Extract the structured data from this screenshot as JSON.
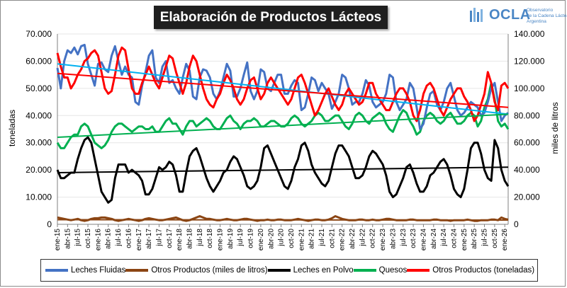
{
  "header": {
    "title": "Elaboración de Productos Lácteos",
    "logo_word": "OCLA",
    "logo_sub": [
      "Observatorio",
      "de la Cadena Láctea",
      "Argentina"
    ]
  },
  "chart_data": {
    "type": "line",
    "left_axis": {
      "label": "toneladas",
      "ticks": [
        "0",
        "10.000",
        "20.000",
        "30.000",
        "40.000",
        "50.000",
        "60.000",
        "70.000"
      ],
      "min": 0,
      "max": 70000
    },
    "right_axis": {
      "label": "miles de litros",
      "ticks": [
        "0",
        "20.000",
        "40.000",
        "60.000",
        "80.000",
        "100.000",
        "120.000",
        "140.000"
      ],
      "min": 0,
      "max": 140000
    },
    "x_tick_labels": [
      "ene-15",
      "abr-15",
      "jul-15",
      "oct-15",
      "ene-16",
      "abr-16",
      "jul-16",
      "oct-16",
      "ene-17",
      "abr-17",
      "jul-17",
      "oct-17",
      "ene-18",
      "abr-18",
      "jul-18",
      "oct-18",
      "ene-19",
      "abr-19",
      "jul-19",
      "oct-19",
      "ene-20",
      "abr-20",
      "jul-20",
      "oct-20",
      "ene-21",
      "abr-21",
      "jul-21",
      "oct-21",
      "ene-22",
      "abr-22",
      "jul-22",
      "oct-22",
      "ene-23",
      "abr-23",
      "jul-23",
      "oct-23",
      "ene-24",
      "abr-24",
      "jul-24",
      "oct-24",
      "ene-25",
      "abr-25",
      "jul-25",
      "oct-25",
      "ene-26"
    ],
    "months": 134,
    "series": [
      {
        "name": "Leches Fluidas",
        "axis": "right",
        "color": "#4472c4",
        "values": [
          115000,
          100000,
          120000,
          128000,
          126000,
          130000,
          125000,
          131000,
          132000,
          118000,
          110000,
          102000,
          118000,
          119000,
          114000,
          112000,
          124000,
          131000,
          120000,
          110000,
          116000,
          110000,
          108000,
          90000,
          88000,
          102000,
          112000,
          124000,
          128000,
          108000,
          104000,
          116000,
          120000,
          104000,
          106000,
          100000,
          96000,
          108000,
          118000,
          113000,
          94000,
          92000,
          108000,
          114000,
          113000,
          108000,
          96000,
          92000,
          98000,
          108000,
          118000,
          113000,
          94000,
          94000,
          100000,
          110000,
          119000,
          98000,
          92000,
          98000,
          114000,
          112000,
          100000,
          98000,
          104000,
          110000,
          110000,
          96000,
          96000,
          102000,
          106000,
          104000,
          84000,
          86000,
          96000,
          108000,
          106000,
          98000,
          104000,
          100000,
          96000,
          85000,
          90000,
          96000,
          110000,
          108000,
          100000,
          88000,
          90000,
          90000,
          96000,
          106000,
          102000,
          90000,
          86000,
          88000,
          90000,
          96000,
          110000,
          108000,
          90000,
          84000,
          88000,
          92000,
          104000,
          100000,
          86000,
          70000,
          74000,
          86000,
          96000,
          98000,
          88000,
          84000,
          90000,
          100000,
          104000,
          94000,
          84000,
          80000,
          82000,
          86000,
          90000,
          88000,
          86000,
          80000,
          82000,
          90000,
          100000,
          104000,
          90000,
          76000,
          80000,
          82000
        ]
      },
      {
        "name": "Otros Productos (miles de litros)",
        "axis": "right",
        "color": "#8b4513",
        "values": [
          5000,
          4500,
          4000,
          3500,
          3000,
          3500,
          4000,
          3000,
          2500,
          3000,
          4000,
          4500,
          4500,
          5000,
          5000,
          4500,
          4000,
          3000,
          2500,
          3000,
          3500,
          4000,
          3500,
          3000,
          2500,
          3000,
          4000,
          4500,
          4000,
          3500,
          3000,
          3000,
          3500,
          4000,
          4500,
          5000,
          4000,
          3000,
          2500,
          3000,
          4000,
          5000,
          6000,
          5000,
          4000,
          4000,
          3500,
          3000,
          3000,
          3500,
          4000,
          3500,
          3000,
          3000,
          3500,
          4000,
          4000,
          3500,
          3000,
          2500,
          3000,
          3000,
          3500,
          3000,
          3000,
          3500,
          3500,
          3000,
          3000,
          3000,
          3500,
          4000,
          3500,
          3000,
          2500,
          3000,
          3500,
          3500,
          3000,
          3000,
          3500,
          4500,
          6000,
          5000,
          4000,
          3500,
          3000,
          3000,
          3000,
          3500,
          3500,
          3000,
          3000,
          3500,
          3000,
          3000,
          3500,
          4000,
          4000,
          3500,
          3000,
          3000,
          3000,
          3000,
          3500,
          3500,
          3000,
          3000,
          3000,
          3000,
          3000,
          3500,
          3500,
          3000,
          3000,
          3000,
          2500,
          3000,
          3000,
          3000,
          3000,
          3500,
          3000,
          2500,
          2500,
          3000,
          3000,
          3000,
          3500,
          3500,
          3000,
          5000,
          4000,
          3500
        ]
      },
      {
        "name": "Leches en Polvo",
        "axis": "left",
        "color": "#000000",
        "values": [
          20000,
          17000,
          17000,
          18000,
          19000,
          19000,
          24000,
          28000,
          31000,
          32000,
          30000,
          24000,
          18000,
          12000,
          10000,
          8000,
          9000,
          17000,
          22000,
          22000,
          22000,
          19000,
          20000,
          19000,
          18000,
          16000,
          11000,
          11000,
          13000,
          17000,
          21000,
          20000,
          21000,
          23000,
          22000,
          18000,
          12000,
          12000,
          19000,
          25000,
          27000,
          28000,
          25000,
          21000,
          17000,
          14000,
          12000,
          14000,
          16000,
          19000,
          20000,
          23000,
          25000,
          24000,
          21000,
          18000,
          14000,
          13000,
          14000,
          16000,
          21000,
          28000,
          29000,
          26000,
          23000,
          20000,
          17000,
          14000,
          13000,
          16000,
          21000,
          24000,
          29000,
          30000,
          27000,
          22000,
          19000,
          17000,
          15000,
          14000,
          16000,
          21000,
          26000,
          29000,
          29000,
          27000,
          25000,
          21000,
          17000,
          17000,
          18000,
          21000,
          25000,
          27000,
          26000,
          24000,
          22000,
          18000,
          12000,
          10000,
          11000,
          14000,
          17000,
          21000,
          22000,
          19000,
          15000,
          12000,
          12000,
          14000,
          18000,
          19000,
          21000,
          23000,
          24000,
          22000,
          18000,
          13000,
          11000,
          10000,
          13000,
          20000,
          28000,
          30000,
          30000,
          26000,
          20000,
          17000,
          16000,
          31000,
          28000,
          20000,
          16000,
          14000
        ]
      },
      {
        "name": "Quesos",
        "axis": "left",
        "color": "#00b050",
        "values": [
          30000,
          28000,
          28000,
          30000,
          32000,
          33000,
          33000,
          36000,
          37000,
          36000,
          33000,
          30000,
          29000,
          28000,
          29000,
          31000,
          34000,
          36000,
          37000,
          37000,
          36000,
          35000,
          34000,
          35000,
          36000,
          36000,
          35000,
          35000,
          36000,
          34000,
          34000,
          36000,
          38000,
          39000,
          37000,
          37000,
          35000,
          33000,
          36000,
          38000,
          38000,
          36000,
          37000,
          38000,
          39000,
          38000,
          36000,
          35000,
          35000,
          37000,
          39000,
          40000,
          38000,
          37000,
          35000,
          37000,
          38000,
          38000,
          39000,
          38000,
          36000,
          36000,
          37000,
          38000,
          38000,
          37000,
          36000,
          36000,
          37000,
          39000,
          40000,
          39000,
          37000,
          36000,
          37000,
          38000,
          40000,
          41000,
          40000,
          38000,
          38000,
          39000,
          40000,
          40000,
          38000,
          36000,
          35000,
          37000,
          40000,
          41000,
          40000,
          38000,
          37000,
          39000,
          40000,
          41000,
          40000,
          37000,
          35000,
          34000,
          37000,
          40000,
          42000,
          41000,
          38000,
          36000,
          33000,
          34000,
          38000,
          40000,
          41000,
          40000,
          38000,
          37000,
          38000,
          40000,
          41000,
          39000,
          37000,
          37000,
          38000,
          40000,
          41000,
          40000,
          36000,
          38000,
          43000,
          46000,
          52000,
          46000,
          38000,
          36000,
          37000,
          35000
        ]
      },
      {
        "name": "Otros Productos (toneladas)",
        "axis": "left",
        "color": "#ff0000",
        "values": [
          63000,
          58000,
          54000,
          54000,
          50000,
          52000,
          55000,
          57000,
          60000,
          61000,
          63000,
          64000,
          62000,
          56000,
          50000,
          48000,
          49000,
          55000,
          62000,
          65000,
          64000,
          57000,
          50000,
          48000,
          48000,
          52000,
          55000,
          58000,
          55000,
          52000,
          50000,
          54000,
          58000,
          62000,
          61000,
          56000,
          52000,
          48000,
          52000,
          58000,
          62000,
          60000,
          55000,
          50000,
          46000,
          44000,
          43000,
          46000,
          48000,
          52000,
          55000,
          53000,
          50000,
          46000,
          44000,
          46000,
          50000,
          53000,
          54000,
          50000,
          46000,
          48000,
          52000,
          54000,
          52000,
          50000,
          48000,
          46000,
          44000,
          46000,
          50000,
          54000,
          55000,
          52000,
          48000,
          44000,
          40000,
          42000,
          45000,
          48000,
          50000,
          47000,
          44000,
          42000,
          44000,
          48000,
          50000,
          48000,
          46000,
          44000,
          45000,
          48000,
          52000,
          52000,
          48000,
          46000,
          44000,
          42000,
          42000,
          45000,
          48000,
          50000,
          50000,
          48000,
          45000,
          40000,
          38000,
          42000,
          48000,
          51000,
          52000,
          50000,
          46000,
          42000,
          40000,
          43000,
          46000,
          48000,
          50000,
          50000,
          47000,
          45000,
          42000,
          38000,
          40000,
          44000,
          48000,
          56000,
          52000,
          45000,
          42000,
          51000,
          52000,
          50000
        ]
      }
    ],
    "trendlines": [
      {
        "name": "Leches Fluidas trend",
        "axis": "right",
        "color": "#00b0f0",
        "start": 118000,
        "end": 81000
      },
      {
        "name": "Otros Productos (toneladas) trend",
        "axis": "left",
        "color": "#ff0000",
        "start": 55500,
        "end": 43000
      },
      {
        "name": "Quesos trend",
        "axis": "left",
        "color": "#00b050",
        "start": 32000,
        "end": 40500
      },
      {
        "name": "Leches en Polvo trend",
        "axis": "left",
        "color": "#000000",
        "start": 19000,
        "end": 21000
      },
      {
        "name": "Otros Productos (miles de litros) trend",
        "axis": "right",
        "color": "#8b4513",
        "start": 3400,
        "end": 3100
      }
    ]
  }
}
